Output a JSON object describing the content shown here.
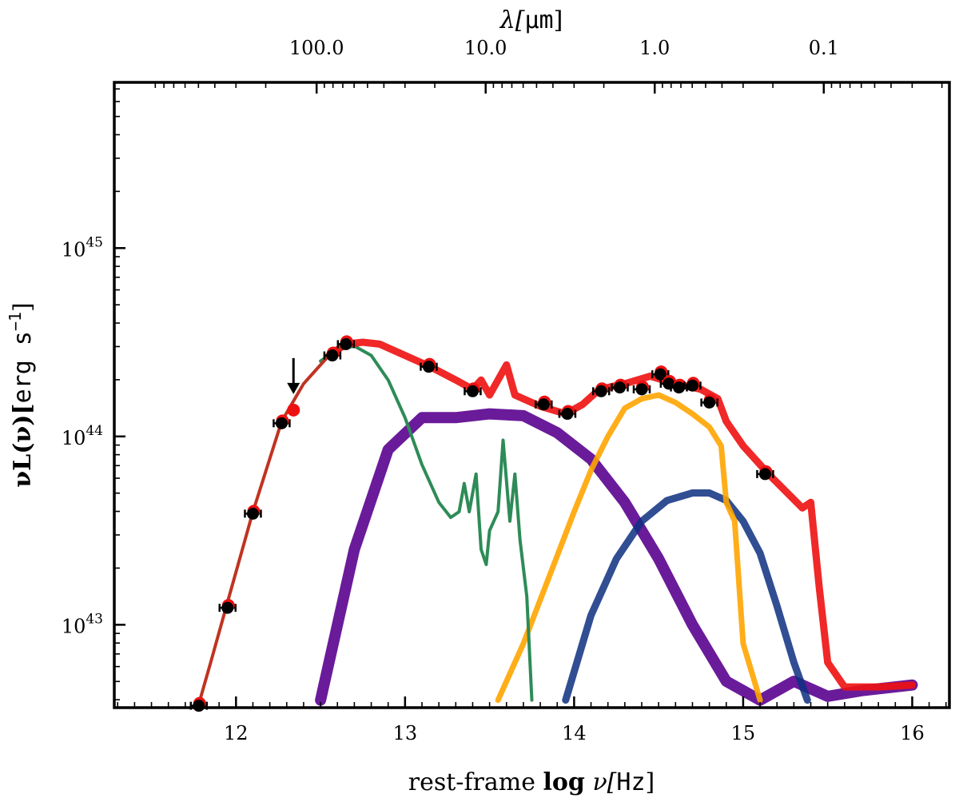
{
  "chart_data": {
    "type": "line",
    "title": "",
    "xlabel": {
      "prefix": "rest-frame ",
      "bold": "log",
      "suffix": " ν[",
      "unit": "Hz",
      "close": "]"
    },
    "ylabel": {
      "prefix": "νL(ν)[",
      "unit": "erg s",
      "sup": "−1",
      "close": "]"
    },
    "top_xlabel": {
      "prefix": "λ[",
      "unit": "μm",
      "close": "]"
    },
    "xlim": [
      11.28,
      16.22
    ],
    "ylog10_lim": [
      42.56,
      45.88
    ],
    "x_ticks": [
      12,
      13,
      14,
      15,
      16
    ],
    "x_tick_labels": [
      "12",
      "13",
      "14",
      "15",
      "16"
    ],
    "y_ticks": [
      43,
      44,
      45
    ],
    "y_tick_labels": [
      {
        "base": "10",
        "exp": "43"
      },
      {
        "base": "10",
        "exp": "44"
      },
      {
        "base": "10",
        "exp": "45"
      }
    ],
    "top_ticks_um": [
      100.0,
      10.0,
      1.0,
      0.1
    ],
    "top_tick_labels": [
      "100.0",
      "10.0",
      "1.0",
      "0.1"
    ],
    "colors": {
      "total": "#ee1111",
      "cold_dust": "#c03322",
      "starburst": "#2e8b57",
      "torus": "#6a1b9a",
      "stellar": "#ffa500",
      "bbb": "#0d2f80",
      "points": "#000000"
    },
    "series": [
      {
        "name": "cold_dust_model",
        "color_key": "cold_dust",
        "x": [
          11.78,
          11.85,
          11.95,
          12.1,
          12.27,
          12.4,
          12.55,
          12.65
        ],
        "log10y": [
          42.58,
          42.8,
          43.12,
          43.6,
          44.08,
          44.28,
          44.43,
          44.49
        ]
      },
      {
        "name": "total_model",
        "color_key": "total",
        "x": [
          12.55,
          12.65,
          12.75,
          12.85,
          13.0,
          13.15,
          13.3,
          13.4,
          13.45,
          13.5,
          13.55,
          13.6,
          13.65,
          13.7,
          13.8,
          13.95,
          14.05,
          14.15,
          14.3,
          14.45,
          14.6,
          14.75,
          14.85,
          14.9,
          15.0,
          15.15,
          15.35,
          15.4,
          15.45,
          15.5,
          15.6,
          15.8,
          16.0
        ],
        "log10y": [
          44.43,
          44.49,
          44.5,
          44.49,
          44.43,
          44.37,
          44.3,
          44.25,
          44.3,
          44.22,
          44.3,
          44.38,
          44.22,
          44.2,
          44.16,
          44.12,
          44.17,
          44.25,
          44.28,
          44.32,
          44.28,
          44.25,
          44.2,
          44.08,
          43.95,
          43.8,
          43.62,
          43.65,
          43.2,
          42.8,
          42.67,
          42.67,
          42.68
        ]
      },
      {
        "name": "starburst_model",
        "color_key": "starburst",
        "x": [
          12.5,
          12.6,
          12.7,
          12.8,
          12.9,
          13.0,
          13.1,
          13.2,
          13.27,
          13.32,
          13.35,
          13.38,
          13.42,
          13.45,
          13.48,
          13.5,
          13.55,
          13.58,
          13.62,
          13.65,
          13.68,
          13.72,
          13.75
        ],
        "log10y": [
          44.4,
          44.46,
          44.48,
          44.43,
          44.3,
          44.1,
          43.85,
          43.65,
          43.57,
          43.6,
          43.75,
          43.6,
          43.8,
          43.4,
          43.32,
          43.5,
          43.6,
          43.98,
          43.55,
          43.8,
          43.45,
          43.15,
          42.6
        ]
      },
      {
        "name": "torus_model",
        "color_key": "torus",
        "x": [
          12.5,
          12.7,
          12.9,
          13.1,
          13.3,
          13.5,
          13.7,
          13.9,
          14.1,
          14.3,
          14.5,
          14.7,
          14.9,
          15.1,
          15.3,
          15.5,
          15.7,
          16.0
        ],
        "log10y": [
          42.6,
          43.4,
          43.93,
          44.1,
          44.1,
          44.12,
          44.11,
          44.02,
          43.88,
          43.65,
          43.35,
          43.0,
          42.7,
          42.6,
          42.7,
          42.62,
          42.65,
          42.68
        ]
      },
      {
        "name": "stellar_model",
        "color_key": "stellar",
        "x": [
          13.55,
          13.7,
          13.85,
          14.0,
          14.1,
          14.2,
          14.3,
          14.4,
          14.5,
          14.6,
          14.7,
          14.8,
          14.87,
          14.9,
          14.95,
          15.0,
          15.1
        ],
        "log10y": [
          42.6,
          42.9,
          43.25,
          43.6,
          43.82,
          44.0,
          44.15,
          44.2,
          44.22,
          44.18,
          44.12,
          44.05,
          43.95,
          43.65,
          43.55,
          42.9,
          42.6
        ]
      },
      {
        "name": "bbb_model",
        "color_key": "bbb",
        "x": [
          13.95,
          14.1,
          14.25,
          14.4,
          14.55,
          14.7,
          14.8,
          14.9,
          15.0,
          15.1,
          15.2,
          15.3,
          15.38
        ],
        "log10y": [
          42.6,
          43.05,
          43.35,
          43.55,
          43.66,
          43.7,
          43.7,
          43.66,
          43.55,
          43.38,
          43.1,
          42.8,
          42.6
        ]
      }
    ],
    "points": {
      "x": [
        11.78,
        11.95,
        12.1,
        12.27,
        12.57,
        12.65,
        13.14,
        13.4,
        13.82,
        13.96,
        14.16,
        14.27,
        14.4,
        14.51,
        14.56,
        14.62,
        14.7,
        14.8,
        15.13
      ],
      "log10y": [
        42.57,
        43.09,
        43.59,
        44.07,
        44.43,
        44.49,
        44.37,
        44.24,
        44.17,
        44.12,
        44.24,
        44.26,
        44.25,
        44.33,
        44.28,
        44.26,
        44.27,
        44.18,
        43.8
      ]
    },
    "upper_limit": {
      "x": 12.34,
      "log10y": 44.14
    }
  }
}
